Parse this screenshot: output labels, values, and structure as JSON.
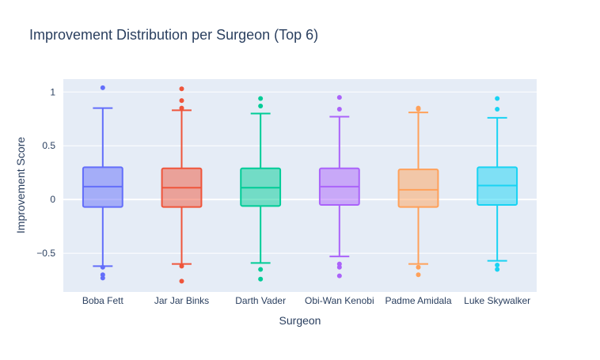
{
  "chart_data": {
    "type": "box",
    "title": "Improvement Distribution per Surgeon (Top 6)",
    "xlabel": "Surgeon",
    "ylabel": "Improvement Score",
    "ylim": [
      -0.86,
      1.12
    ],
    "yticks": [
      -0.5,
      0,
      0.5,
      1
    ],
    "ytick_labels": [
      "−0.5",
      "0",
      "0.5",
      "1"
    ],
    "grid": true,
    "legend": "none",
    "series": [
      {
        "name": "Boba Fett",
        "color": "#636efa",
        "q1": -0.07,
        "median": 0.12,
        "q3": 0.3,
        "lower_whisker": -0.62,
        "upper_whisker": 0.85,
        "outliers": [
          1.04,
          -0.7,
          -0.73,
          -0.63
        ]
      },
      {
        "name": "Jar Jar Binks",
        "color": "#ef553b",
        "q1": -0.07,
        "median": 0.11,
        "q3": 0.29,
        "lower_whisker": -0.6,
        "upper_whisker": 0.83,
        "outliers": [
          1.03,
          0.92,
          0.85,
          -0.62,
          -0.76
        ]
      },
      {
        "name": "Darth Vader",
        "color": "#00cc96",
        "q1": -0.06,
        "median": 0.11,
        "q3": 0.29,
        "lower_whisker": -0.59,
        "upper_whisker": 0.8,
        "outliers": [
          0.94,
          0.87,
          -0.65,
          -0.74
        ]
      },
      {
        "name": "Obi-Wan Kenobi",
        "color": "#ab63fa",
        "q1": -0.05,
        "median": 0.12,
        "q3": 0.29,
        "lower_whisker": -0.53,
        "upper_whisker": 0.77,
        "outliers": [
          0.95,
          0.84,
          -0.6,
          -0.63,
          -0.71
        ]
      },
      {
        "name": "Padme Amidala",
        "color": "#ffa15a",
        "q1": -0.07,
        "median": 0.09,
        "q3": 0.28,
        "lower_whisker": -0.6,
        "upper_whisker": 0.81,
        "outliers": [
          0.85,
          0.84,
          -0.63,
          -0.7
        ]
      },
      {
        "name": "Luke Skywalker",
        "color": "#19d3f3",
        "q1": -0.05,
        "median": 0.13,
        "q3": 0.3,
        "lower_whisker": -0.57,
        "upper_whisker": 0.76,
        "outliers": [
          0.94,
          0.84,
          -0.61,
          -0.65
        ]
      }
    ]
  },
  "colors": {
    "plot_background": "#e5ecf6",
    "gridline": "#ffffff",
    "text": "#2a3f5f"
  }
}
